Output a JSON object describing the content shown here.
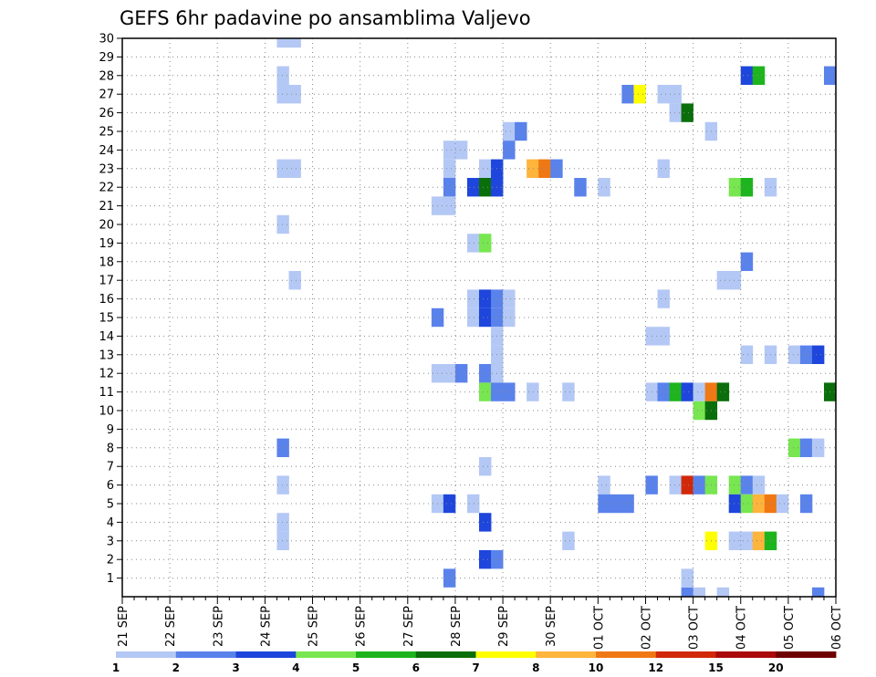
{
  "chart_data": {
    "type": "heatmap",
    "title": "GEFS 6hr padavine po ansamblima Valjevo",
    "xlabel": "",
    "ylabel": "",
    "grid": true,
    "x_ticks": [
      "21 SEP",
      "22 SEP",
      "23 SEP",
      "24 SEP",
      "25 SEP",
      "26 SEP",
      "27 SEP",
      "28 SEP",
      "29 SEP",
      "30 SEP",
      "01 OCT",
      "02 OCT",
      "03 OCT",
      "04 OCT",
      "05 OCT",
      "06 OCT"
    ],
    "x_step": "6hr",
    "y_ticks": [
      1,
      2,
      3,
      4,
      5,
      6,
      7,
      8,
      9,
      10,
      11,
      12,
      13,
      14,
      15,
      16,
      17,
      18,
      19,
      20,
      21,
      22,
      23,
      24,
      25,
      26,
      27,
      28,
      29,
      30
    ],
    "y_range": [
      0,
      30
    ],
    "legend": {
      "placement": "bottom",
      "boundaries": [
        1,
        2,
        3,
        4,
        5,
        6,
        7,
        8,
        10,
        12,
        15,
        20
      ],
      "colors": [
        "#b4c8f5",
        "#5a82eb",
        "#1e46dc",
        "#78e650",
        "#1eb41e",
        "#0a6e0a",
        "#ffff00",
        "#ffb43c",
        "#f07814",
        "#d2280a",
        "#aa0a0a",
        "#6e0000"
      ]
    },
    "cells": [
      {
        "t": 13,
        "y": 30,
        "v": 1.5
      },
      {
        "t": 14,
        "y": 30,
        "v": 1.5
      },
      {
        "t": 13,
        "y": 28,
        "v": 1.5
      },
      {
        "t": 13,
        "y": 27,
        "v": 1.5
      },
      {
        "t": 14,
        "y": 27,
        "v": 1.5
      },
      {
        "t": 13,
        "y": 23,
        "v": 1.5
      },
      {
        "t": 14,
        "y": 23,
        "v": 1.5
      },
      {
        "t": 13,
        "y": 20,
        "v": 1.5
      },
      {
        "t": 14,
        "y": 17,
        "v": 1.5
      },
      {
        "t": 13,
        "y": 8,
        "v": 2.5
      },
      {
        "t": 13,
        "y": 6,
        "v": 1.5
      },
      {
        "t": 13,
        "y": 4,
        "v": 1.5
      },
      {
        "t": 13,
        "y": 3,
        "v": 1.5
      },
      {
        "t": 27,
        "y": 24,
        "v": 1.5
      },
      {
        "t": 28,
        "y": 24,
        "v": 1.5
      },
      {
        "t": 27,
        "y": 23,
        "v": 1.5
      },
      {
        "t": 27,
        "y": 22,
        "v": 2.5
      },
      {
        "t": 26,
        "y": 21,
        "v": 1.5
      },
      {
        "t": 27,
        "y": 21,
        "v": 1.5
      },
      {
        "t": 26,
        "y": 15,
        "v": 2.5
      },
      {
        "t": 26,
        "y": 12,
        "v": 1.5
      },
      {
        "t": 27,
        "y": 12,
        "v": 1.5
      },
      {
        "t": 28,
        "y": 12,
        "v": 2.5
      },
      {
        "t": 26,
        "y": 5,
        "v": 1.5
      },
      {
        "t": 27,
        "y": 5,
        "v": 3.5
      },
      {
        "t": 27,
        "y": 1,
        "v": 2.5
      },
      {
        "t": 32,
        "y": 25,
        "v": 1.5
      },
      {
        "t": 33,
        "y": 25,
        "v": 2.5
      },
      {
        "t": 32,
        "y": 24,
        "v": 2.5
      },
      {
        "t": 30,
        "y": 23,
        "v": 1.5
      },
      {
        "t": 31,
        "y": 23,
        "v": 3.5
      },
      {
        "t": 29,
        "y": 22,
        "v": 3.5
      },
      {
        "t": 30,
        "y": 22,
        "v": 6.5
      },
      {
        "t": 31,
        "y": 22,
        "v": 3.5
      },
      {
        "t": 29,
        "y": 19,
        "v": 1.5
      },
      {
        "t": 30,
        "y": 19,
        "v": 4.5
      },
      {
        "t": 29,
        "y": 16,
        "v": 1.5
      },
      {
        "t": 30,
        "y": 16,
        "v": 3.5
      },
      {
        "t": 31,
        "y": 16,
        "v": 2.5
      },
      {
        "t": 32,
        "y": 16,
        "v": 1.5
      },
      {
        "t": 29,
        "y": 15,
        "v": 1.5
      },
      {
        "t": 30,
        "y": 15,
        "v": 3.5
      },
      {
        "t": 31,
        "y": 15,
        "v": 2.5
      },
      {
        "t": 32,
        "y": 15,
        "v": 1.5
      },
      {
        "t": 31,
        "y": 14,
        "v": 1.5
      },
      {
        "t": 31,
        "y": 13,
        "v": 1.5
      },
      {
        "t": 30,
        "y": 12,
        "v": 2.5
      },
      {
        "t": 31,
        "y": 12,
        "v": 1.5
      },
      {
        "t": 30,
        "y": 11,
        "v": 4.5
      },
      {
        "t": 31,
        "y": 11,
        "v": 2.5
      },
      {
        "t": 32,
        "y": 11,
        "v": 2.5
      },
      {
        "t": 30,
        "y": 7,
        "v": 1.5
      },
      {
        "t": 29,
        "y": 5,
        "v": 1.5
      },
      {
        "t": 30,
        "y": 4,
        "v": 3.5
      },
      {
        "t": 30,
        "y": 2,
        "v": 3.5
      },
      {
        "t": 31,
        "y": 2,
        "v": 2.5
      },
      {
        "t": 34,
        "y": 23,
        "v": 9
      },
      {
        "t": 35,
        "y": 23,
        "v": 11
      },
      {
        "t": 36,
        "y": 23,
        "v": 2.5
      },
      {
        "t": 34,
        "y": 11,
        "v": 1.5
      },
      {
        "t": 37,
        "y": 11,
        "v": 1.5
      },
      {
        "t": 38,
        "y": 22,
        "v": 2.5
      },
      {
        "t": 37,
        "y": 3,
        "v": 1.5
      },
      {
        "t": 40,
        "y": 22,
        "v": 1.5
      },
      {
        "t": 40,
        "y": 6,
        "v": 1.5
      },
      {
        "t": 40,
        "y": 5,
        "v": 2.5
      },
      {
        "t": 41,
        "y": 5,
        "v": 2.5
      },
      {
        "t": 42,
        "y": 5,
        "v": 2.5
      },
      {
        "t": 42,
        "y": 27,
        "v": 2.5
      },
      {
        "t": 43,
        "y": 27,
        "v": 7.5
      },
      {
        "t": 45,
        "y": 27,
        "v": 1.5
      },
      {
        "t": 46,
        "y": 27,
        "v": 1.5
      },
      {
        "t": 46,
        "y": 26,
        "v": 1.5
      },
      {
        "t": 47,
        "y": 26,
        "v": 6.5
      },
      {
        "t": 49,
        "y": 25,
        "v": 1.5
      },
      {
        "t": 45,
        "y": 23,
        "v": 1.5
      },
      {
        "t": 45,
        "y": 16,
        "v": 1.5
      },
      {
        "t": 44,
        "y": 14,
        "v": 1.5
      },
      {
        "t": 45,
        "y": 14,
        "v": 1.5
      },
      {
        "t": 44,
        "y": 11,
        "v": 1.5
      },
      {
        "t": 45,
        "y": 11,
        "v": 2.5
      },
      {
        "t": 46,
        "y": 11,
        "v": 5.5
      },
      {
        "t": 47,
        "y": 11,
        "v": 3.5
      },
      {
        "t": 48,
        "y": 11,
        "v": 1.5
      },
      {
        "t": 49,
        "y": 11,
        "v": 11
      },
      {
        "t": 50,
        "y": 11,
        "v": 6.5
      },
      {
        "t": 48,
        "y": 10,
        "v": 4.5
      },
      {
        "t": 49,
        "y": 10,
        "v": 6.5
      },
      {
        "t": 44,
        "y": 6,
        "v": 2.5
      },
      {
        "t": 46,
        "y": 6,
        "v": 1.5
      },
      {
        "t": 47,
        "y": 6,
        "v": 13
      },
      {
        "t": 48,
        "y": 6,
        "v": 2.5
      },
      {
        "t": 49,
        "y": 6,
        "v": 4.5
      },
      {
        "t": 49,
        "y": 3,
        "v": 7.5
      },
      {
        "t": 47,
        "y": 0,
        "v": 2.5
      },
      {
        "t": 47,
        "y": 1,
        "v": 1.5
      },
      {
        "t": 48,
        "y": 0,
        "v": 1.5
      },
      {
        "t": 50,
        "y": 0,
        "v": 1.5
      },
      {
        "t": 52,
        "y": 28,
        "v": 3.5
      },
      {
        "t": 53,
        "y": 28,
        "v": 5.5
      },
      {
        "t": 51,
        "y": 22,
        "v": 4.5
      },
      {
        "t": 52,
        "y": 22,
        "v": 5.5
      },
      {
        "t": 54,
        "y": 22,
        "v": 1.5
      },
      {
        "t": 52,
        "y": 18,
        "v": 2.5
      },
      {
        "t": 50,
        "y": 17,
        "v": 1.5
      },
      {
        "t": 51,
        "y": 17,
        "v": 1.5
      },
      {
        "t": 52,
        "y": 13,
        "v": 1.5
      },
      {
        "t": 54,
        "y": 13,
        "v": 1.5
      },
      {
        "t": 51,
        "y": 6,
        "v": 4.5
      },
      {
        "t": 52,
        "y": 6,
        "v": 2.5
      },
      {
        "t": 53,
        "y": 6,
        "v": 1.5
      },
      {
        "t": 51,
        "y": 5,
        "v": 3.5
      },
      {
        "t": 52,
        "y": 5,
        "v": 4.5
      },
      {
        "t": 53,
        "y": 5,
        "v": 9
      },
      {
        "t": 54,
        "y": 5,
        "v": 11
      },
      {
        "t": 55,
        "y": 5,
        "v": 1.5
      },
      {
        "t": 51,
        "y": 3,
        "v": 1.5
      },
      {
        "t": 52,
        "y": 3,
        "v": 1.5
      },
      {
        "t": 53,
        "y": 3,
        "v": 9
      },
      {
        "t": 54,
        "y": 3,
        "v": 5.5
      },
      {
        "t": 56,
        "y": 13,
        "v": 1.5
      },
      {
        "t": 57,
        "y": 13,
        "v": 2.5
      },
      {
        "t": 58,
        "y": 13,
        "v": 3.5
      },
      {
        "t": 56,
        "y": 8,
        "v": 4.5
      },
      {
        "t": 57,
        "y": 8,
        "v": 2.5
      },
      {
        "t": 58,
        "y": 8,
        "v": 1.5
      },
      {
        "t": 57,
        "y": 5,
        "v": 2.5
      },
      {
        "t": 58,
        "y": 0,
        "v": 2.5
      },
      {
        "t": 59,
        "y": 28,
        "v": 2.5
      },
      {
        "t": 59,
        "y": 11,
        "v": 6.5
      }
    ]
  }
}
